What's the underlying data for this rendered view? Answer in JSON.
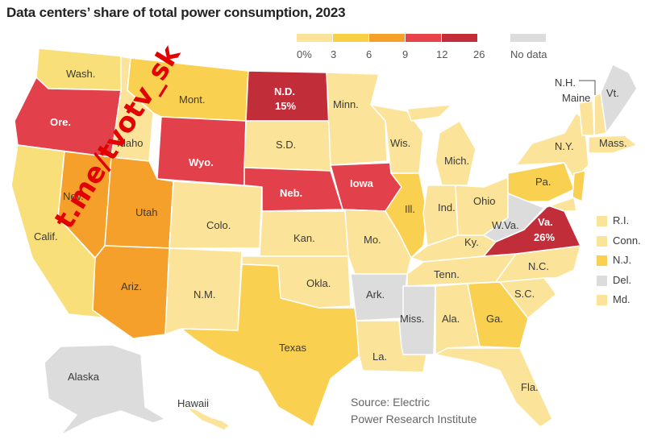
{
  "title": "Data centers’ share of total power consumption, 2023",
  "legend": {
    "ticks": [
      "0%",
      "3",
      "6",
      "9",
      "12",
      "26"
    ],
    "colors": [
      "#fbe49a",
      "#f9cf45",
      "#f4a02b",
      "#e8434a",
      "#c22d3a"
    ],
    "no_data_label": "No data",
    "no_data_color": "#dcdcdc"
  },
  "states": [
    {
      "name": "Wash.",
      "color": "#f9df7a"
    },
    {
      "name": "Ore.",
      "color": "#e2404b",
      "highlight": false
    },
    {
      "name": "Calif.",
      "color": "#f9df7a"
    },
    {
      "name": "Nev.",
      "color": "#f4a02b"
    },
    {
      "name": "Idaho",
      "color": "#fbe49a"
    },
    {
      "name": "Mont.",
      "color": "#f9d050"
    },
    {
      "name": "Wyo.",
      "color": "#e2404b"
    },
    {
      "name": "Utah",
      "color": "#f4a02b"
    },
    {
      "name": "Ariz.",
      "color": "#f4a02b"
    },
    {
      "name": "Colo.",
      "color": "#fbe49a"
    },
    {
      "name": "N.M.",
      "color": "#fbe49a"
    },
    {
      "name": "N.D.",
      "value": "15%",
      "color": "#c22d3a"
    },
    {
      "name": "S.D.",
      "color": "#fbe49a"
    },
    {
      "name": "Neb.",
      "color": "#e2404b"
    },
    {
      "name": "Kan.",
      "color": "#fbe49a"
    },
    {
      "name": "Okla.",
      "color": "#fbe49a"
    },
    {
      "name": "Texas",
      "color": "#f9d050"
    },
    {
      "name": "Minn.",
      "color": "#fbe49a"
    },
    {
      "name": "Iowa",
      "color": "#e2404b"
    },
    {
      "name": "Mo.",
      "color": "#fbe49a"
    },
    {
      "name": "Ark.",
      "color": "#dcdcdc"
    },
    {
      "name": "La.",
      "color": "#fbe49a"
    },
    {
      "name": "Wis.",
      "color": "#fbe49a"
    },
    {
      "name": "Ill.",
      "color": "#f9d050"
    },
    {
      "name": "Mich.",
      "color": "#fbe49a"
    },
    {
      "name": "Ind.",
      "color": "#fbe49a"
    },
    {
      "name": "Ohio",
      "color": "#fbe49a"
    },
    {
      "name": "Ky.",
      "color": "#fbe49a"
    },
    {
      "name": "Tenn.",
      "color": "#fbe49a"
    },
    {
      "name": "Miss.",
      "color": "#dcdcdc"
    },
    {
      "name": "Ala.",
      "color": "#fbe49a"
    },
    {
      "name": "Ga.",
      "color": "#f9d050"
    },
    {
      "name": "Fla.",
      "color": "#fbe49a"
    },
    {
      "name": "S.C.",
      "color": "#fbe49a"
    },
    {
      "name": "N.C.",
      "color": "#fbe49a"
    },
    {
      "name": "Va.",
      "value": "26%",
      "color": "#c22d3a"
    },
    {
      "name": "W.Va.",
      "color": "#dcdcdc"
    },
    {
      "name": "Pa.",
      "color": "#f9d050"
    },
    {
      "name": "N.Y.",
      "color": "#fbe49a"
    },
    {
      "name": "Maine",
      "color": "#fbe49a"
    },
    {
      "name": "N.H.",
      "color": "#fbe49a"
    },
    {
      "name": "Vt.",
      "color": "#dcdcdc"
    },
    {
      "name": "Mass.",
      "color": "#fbe49a"
    },
    {
      "name": "Alaska",
      "color": "#dcdcdc"
    },
    {
      "name": "Hawaii",
      "color": "#fbe49a"
    }
  ],
  "small_states": [
    {
      "name": "R.I.",
      "color": "#fbe49a"
    },
    {
      "name": "Conn.",
      "color": "#fbe49a"
    },
    {
      "name": "N.J.",
      "color": "#f9d050"
    },
    {
      "name": "Del.",
      "color": "#dcdcdc"
    },
    {
      "name": "Md.",
      "color": "#fbe49a"
    }
  ],
  "source_line1": "Source: Electric",
  "source_line2": "Power Research Institute",
  "watermark": "t.me/tvotv_sk"
}
